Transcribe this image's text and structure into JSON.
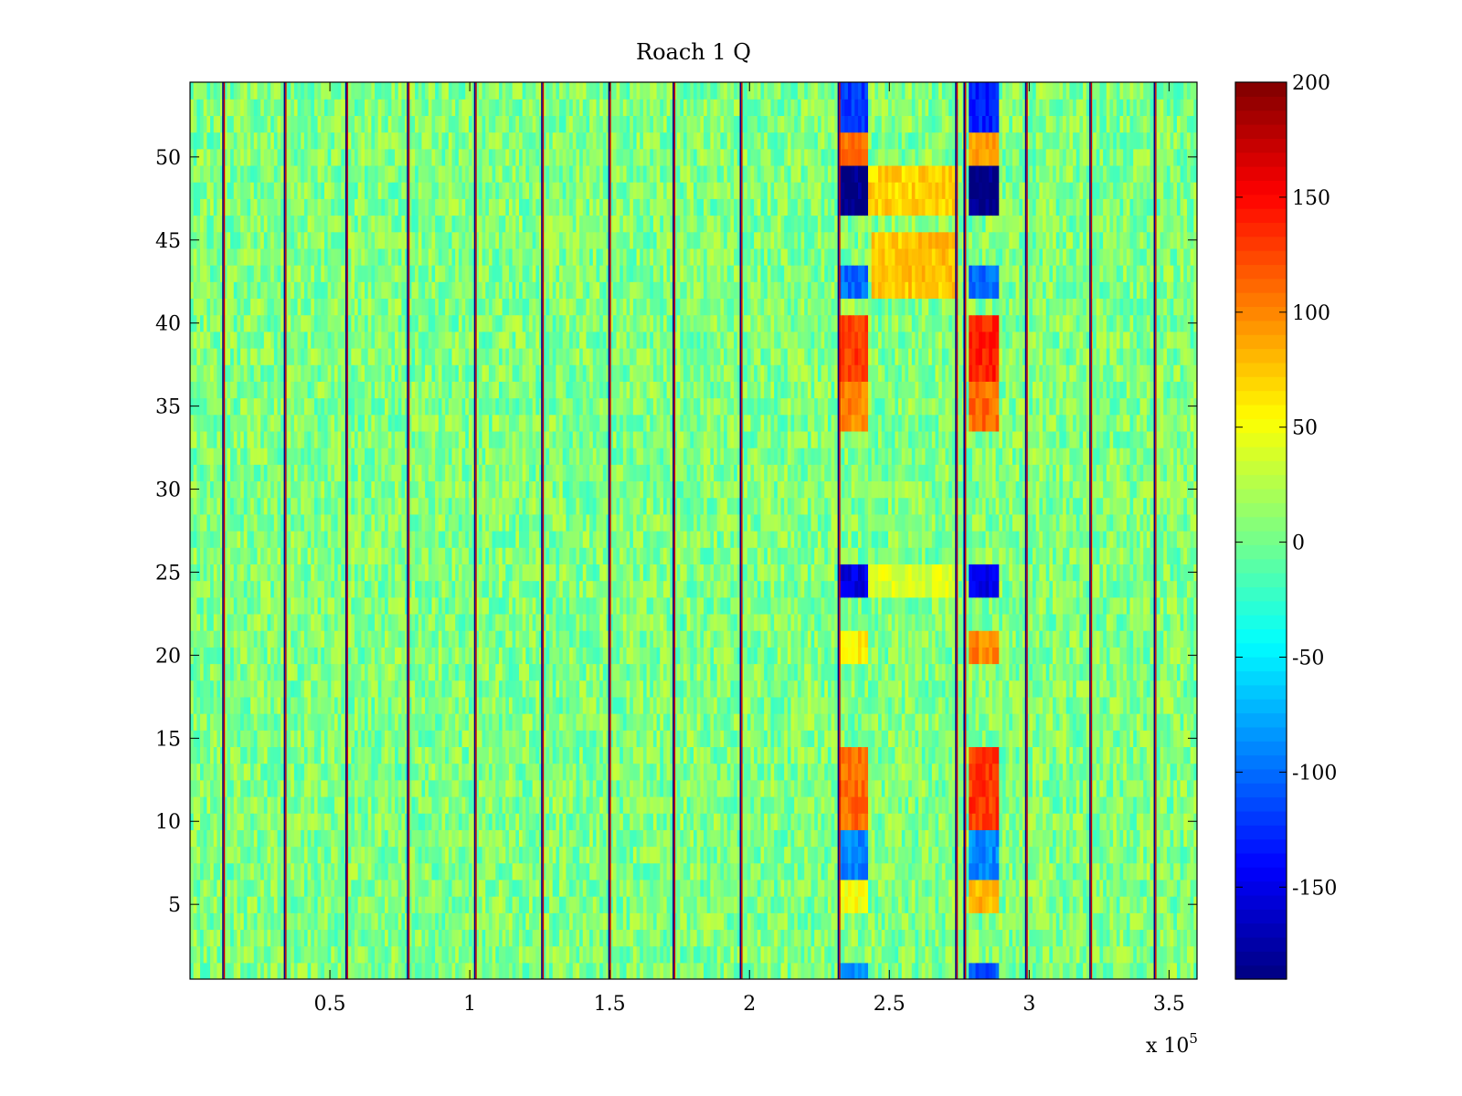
{
  "chart_data": {
    "type": "heatmap",
    "title": "Roach 1 Q",
    "xlabel": "",
    "ylabel": "",
    "x_multiplier_label": "x 10",
    "x_multiplier_exponent": "5",
    "xlim": [
      0,
      3.6
    ],
    "ylim": [
      0.5,
      54.5
    ],
    "x_unit_scale": 100000,
    "x_ticks": [
      0.5,
      1,
      1.5,
      2,
      2.5,
      3,
      3.5
    ],
    "x_tick_labels": [
      "0.5",
      "1",
      "1.5",
      "2",
      "2.5",
      "3",
      "3.5"
    ],
    "y_ticks": [
      5,
      10,
      15,
      20,
      25,
      30,
      35,
      40,
      45,
      50
    ],
    "y_tick_labels": [
      "5",
      "10",
      "15",
      "20",
      "25",
      "30",
      "35",
      "40",
      "45",
      "50"
    ],
    "rows": 54,
    "baseline_value": 5,
    "noise_amplitude": 28,
    "colormap": "jet",
    "colorbar": {
      "min": -190,
      "max": 200,
      "ticks": [
        -150,
        -100,
        -50,
        0,
        50,
        100,
        150,
        200
      ],
      "tick_labels": [
        "-150",
        "-100",
        "-50",
        "0",
        "50",
        "100",
        "150",
        "200"
      ]
    },
    "vertical_line_x": [
      0.12,
      0.34,
      0.56,
      0.78,
      1.02,
      1.26,
      1.5,
      1.73,
      1.97,
      2.32,
      2.74,
      2.77,
      2.99,
      3.22,
      3.45
    ],
    "regions": [
      {
        "x": [
          2.32,
          2.42
        ],
        "y": [
          52,
          54
        ],
        "value": -120
      },
      {
        "x": [
          2.32,
          2.42
        ],
        "y": [
          50,
          51
        ],
        "value": 110
      },
      {
        "x": [
          2.32,
          2.42
        ],
        "y": [
          46.5,
          49
        ],
        "value": -185
      },
      {
        "x": [
          2.42,
          2.74
        ],
        "y": [
          47,
          49
        ],
        "value": 70
      },
      {
        "x": [
          2.32,
          2.42
        ],
        "y": [
          41.5,
          43
        ],
        "value": -100
      },
      {
        "x": [
          2.44,
          2.74
        ],
        "y": [
          41.5,
          45
        ],
        "value": 75
      },
      {
        "x": [
          2.32,
          2.42
        ],
        "y": [
          37,
          40
        ],
        "value": 130
      },
      {
        "x": [
          2.32,
          2.42
        ],
        "y": [
          34,
          36
        ],
        "value": 100
      },
      {
        "x": [
          2.32,
          2.42
        ],
        "y": [
          23.5,
          25.5
        ],
        "value": -150
      },
      {
        "x": [
          2.42,
          2.74
        ],
        "y": [
          23.5,
          25.5
        ],
        "value": 40
      },
      {
        "x": [
          2.32,
          2.42
        ],
        "y": [
          20,
          21.5
        ],
        "value": 60
      },
      {
        "x": [
          2.32,
          2.42
        ],
        "y": [
          9.5,
          14
        ],
        "value": 110
      },
      {
        "x": [
          2.32,
          2.42
        ],
        "y": [
          4.5,
          6
        ],
        "value": 50
      },
      {
        "x": [
          2.32,
          2.42
        ],
        "y": [
          7,
          9
        ],
        "value": -90
      },
      {
        "x": [
          2.79,
          2.89
        ],
        "y": [
          52,
          54
        ],
        "value": -130
      },
      {
        "x": [
          2.79,
          2.89
        ],
        "y": [
          50,
          51
        ],
        "value": 90
      },
      {
        "x": [
          2.79,
          2.89
        ],
        "y": [
          46.5,
          49
        ],
        "value": -185
      },
      {
        "x": [
          2.79,
          2.89
        ],
        "y": [
          41.5,
          43
        ],
        "value": -100
      },
      {
        "x": [
          2.79,
          2.89
        ],
        "y": [
          37,
          40
        ],
        "value": 140
      },
      {
        "x": [
          2.79,
          2.89
        ],
        "y": [
          34,
          36
        ],
        "value": 110
      },
      {
        "x": [
          2.79,
          2.89
        ],
        "y": [
          23.5,
          25.5
        ],
        "value": -150
      },
      {
        "x": [
          2.79,
          2.89
        ],
        "y": [
          20,
          21.5
        ],
        "value": 100
      },
      {
        "x": [
          2.79,
          2.89
        ],
        "y": [
          9.5,
          14
        ],
        "value": 130
      },
      {
        "x": [
          2.79,
          2.89
        ],
        "y": [
          4.5,
          6
        ],
        "value": 80
      },
      {
        "x": [
          2.79,
          2.89
        ],
        "y": [
          7,
          9
        ],
        "value": -90
      },
      {
        "x": [
          2.79,
          2.89
        ],
        "y": [
          0.5,
          1.5
        ],
        "value": -110
      },
      {
        "x": [
          2.32,
          2.42
        ],
        "y": [
          0.5,
          1.5
        ],
        "value": -90
      }
    ]
  }
}
